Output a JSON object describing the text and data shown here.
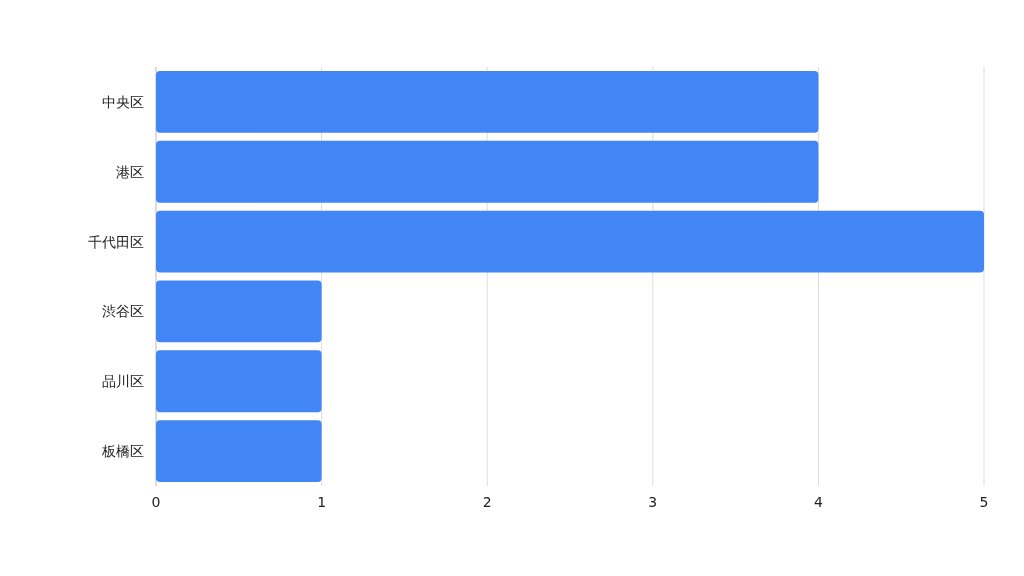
{
  "chart_data": {
    "type": "bar",
    "orientation": "horizontal",
    "categories": [
      "中央区",
      "港区",
      "千代田区",
      "渋谷区",
      "品川区",
      "板橋区"
    ],
    "values": [
      4,
      4,
      5,
      1,
      1,
      1
    ],
    "color": "#4285f4",
    "xlim": [
      0,
      5
    ],
    "xticks": [
      0,
      1,
      2,
      3,
      4,
      5
    ],
    "grid": "x"
  }
}
